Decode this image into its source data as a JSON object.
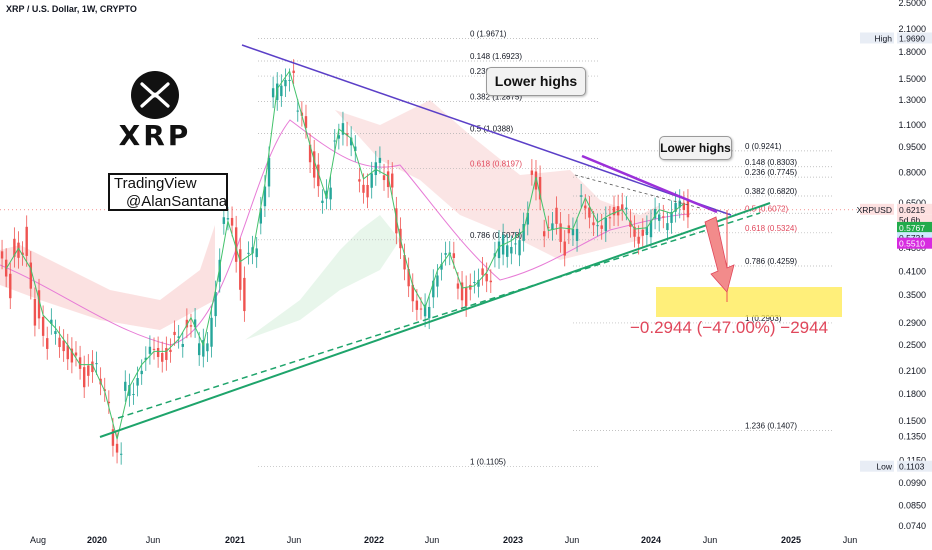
{
  "header": {
    "title": "XRP / U.S. Dollar, 1W, CRYPTO"
  },
  "branding": {
    "logo_text": "XRP",
    "watermark_line1": "TradingView",
    "watermark_line2": "@AlanSantana"
  },
  "callouts": {
    "left": "Lower highs",
    "right": "Lower highs"
  },
  "projection": {
    "label": "−0.2944 (−47.00%) −2944"
  },
  "colors": {
    "bull": "#26a69a",
    "bear": "#ef5350",
    "trend": "#1ea46b",
    "resistance": "#5b3fc7",
    "accent": "#9b30d9",
    "zone": "#ffe94d"
  },
  "chart_data": {
    "type": "candlestick",
    "title": "XRP / U.S. Dollar, 1W, CRYPTO",
    "y_scale": "log",
    "ylim": [
      0.07,
      2.5
    ],
    "yticks": [
      "2.5000",
      "2.1000",
      "1.8000",
      "1.5000",
      "1.3000",
      "1.1000",
      "0.9500",
      "0.8000",
      "0.6500",
      "0.5500",
      "0.4800",
      "0.4100",
      "0.3500",
      "0.2900",
      "0.2500",
      "0.2100",
      "0.1800",
      "0.1500",
      "0.1350",
      "0.1150",
      "0.0990",
      "0.0850",
      "0.0740"
    ],
    "xticks": [
      "Aug",
      "2020",
      "Jun",
      "2021",
      "Jun",
      "2022",
      "Jun",
      "2023",
      "Jun",
      "2024",
      "Jun",
      "2025",
      "Jun"
    ],
    "price_tags": [
      {
        "label": "High",
        "value": "1.9690"
      },
      {
        "label": "XRPUSD",
        "value": "0.6215",
        "sub": "5d 6h"
      },
      {
        "label": "",
        "value": "0.5767"
      },
      {
        "label": "",
        "value": "0.5721"
      },
      {
        "label": "",
        "value": "0.5510"
      },
      {
        "label": "Low",
        "value": "0.1103"
      }
    ],
    "fib_left": [
      {
        "label": "0 (1.9671)",
        "value": 1.9671
      },
      {
        "label": "0.148 (1.6923)",
        "value": 1.6923
      },
      {
        "label": "0.236 (1.5288)",
        "value": 1.5288
      },
      {
        "label": "0.382 (1.2875)",
        "value": 1.2875
      },
      {
        "label": "0.5 (1.0388)",
        "value": 1.0388
      },
      {
        "label": "0.618 (0.8197)",
        "value": 0.8197
      },
      {
        "label": "0.786 (0.5078)",
        "value": 0.5078
      },
      {
        "label": "1 (0.1105)",
        "value": 0.1105
      }
    ],
    "fib_right": [
      {
        "label": "0 (0.9241)",
        "value": 0.9241
      },
      {
        "label": "0.148 (0.8303)",
        "value": 0.8303
      },
      {
        "label": "0.236 (0.7745)",
        "value": 0.7745
      },
      {
        "label": "0.382 (0.6820)",
        "value": 0.682
      },
      {
        "label": "0.5 (0.6072)",
        "value": 0.6072
      },
      {
        "label": "0.618 (0.5324)",
        "value": 0.5324
      },
      {
        "label": "0.786 (0.4259)",
        "value": 0.4259
      },
      {
        "label": "1 (0.2903)",
        "value": 0.2903
      },
      {
        "label": "1.236 (0.1407)",
        "value": 0.1407
      }
    ],
    "price_path": [
      [
        0.47,
        0.35
      ],
      [
        0.49,
        0.45
      ],
      [
        0.53,
        0.29
      ],
      [
        0.36,
        0.24
      ],
      [
        0.3,
        0.25
      ],
      [
        0.27,
        0.22
      ],
      [
        0.24,
        0.19
      ],
      [
        0.21,
        0.22
      ],
      [
        0.19,
        0.17
      ],
      [
        0.14,
        0.12
      ],
      [
        0.19,
        0.18
      ],
      [
        0.2,
        0.23
      ],
      [
        0.24,
        0.23
      ],
      [
        0.23,
        0.24
      ],
      [
        0.26,
        0.25
      ],
      [
        0.29,
        0.3
      ],
      [
        0.24,
        0.25
      ],
      [
        0.26,
        0.45
      ],
      [
        0.58,
        0.55
      ],
      [
        0.54,
        0.32
      ],
      [
        0.44,
        0.47
      ],
      [
        0.55,
        0.9
      ],
      [
        1.35,
        1.4
      ],
      [
        1.5,
        1.6
      ],
      [
        1.25,
        1.05
      ],
      [
        0.95,
        0.75
      ],
      [
        0.62,
        0.7
      ],
      [
        0.95,
        1.15
      ],
      [
        1.05,
        0.92
      ],
      [
        0.8,
        0.7
      ],
      [
        0.75,
        0.85
      ],
      [
        0.78,
        0.75
      ],
      [
        0.6,
        0.4
      ],
      [
        0.4,
        0.33
      ],
      [
        0.32,
        0.31
      ],
      [
        0.36,
        0.45
      ],
      [
        0.48,
        0.43
      ],
      [
        0.38,
        0.34
      ],
      [
        0.36,
        0.37
      ],
      [
        0.4,
        0.4
      ],
      [
        0.45,
        0.5
      ],
      [
        0.47,
        0.52
      ],
      [
        0.48,
        0.58
      ],
      [
        0.82,
        0.7
      ],
      [
        0.52,
        0.54
      ],
      [
        0.6,
        0.48
      ],
      [
        0.55,
        0.52
      ],
      [
        0.7,
        0.62
      ],
      [
        0.6,
        0.52
      ],
      [
        0.55,
        0.63
      ],
      [
        0.62,
        0.6
      ],
      [
        0.55,
        0.52
      ],
      [
        0.53,
        0.55
      ],
      [
        0.6,
        0.62
      ],
      [
        0.57,
        0.62
      ],
      [
        0.65,
        0.62
      ]
    ]
  }
}
